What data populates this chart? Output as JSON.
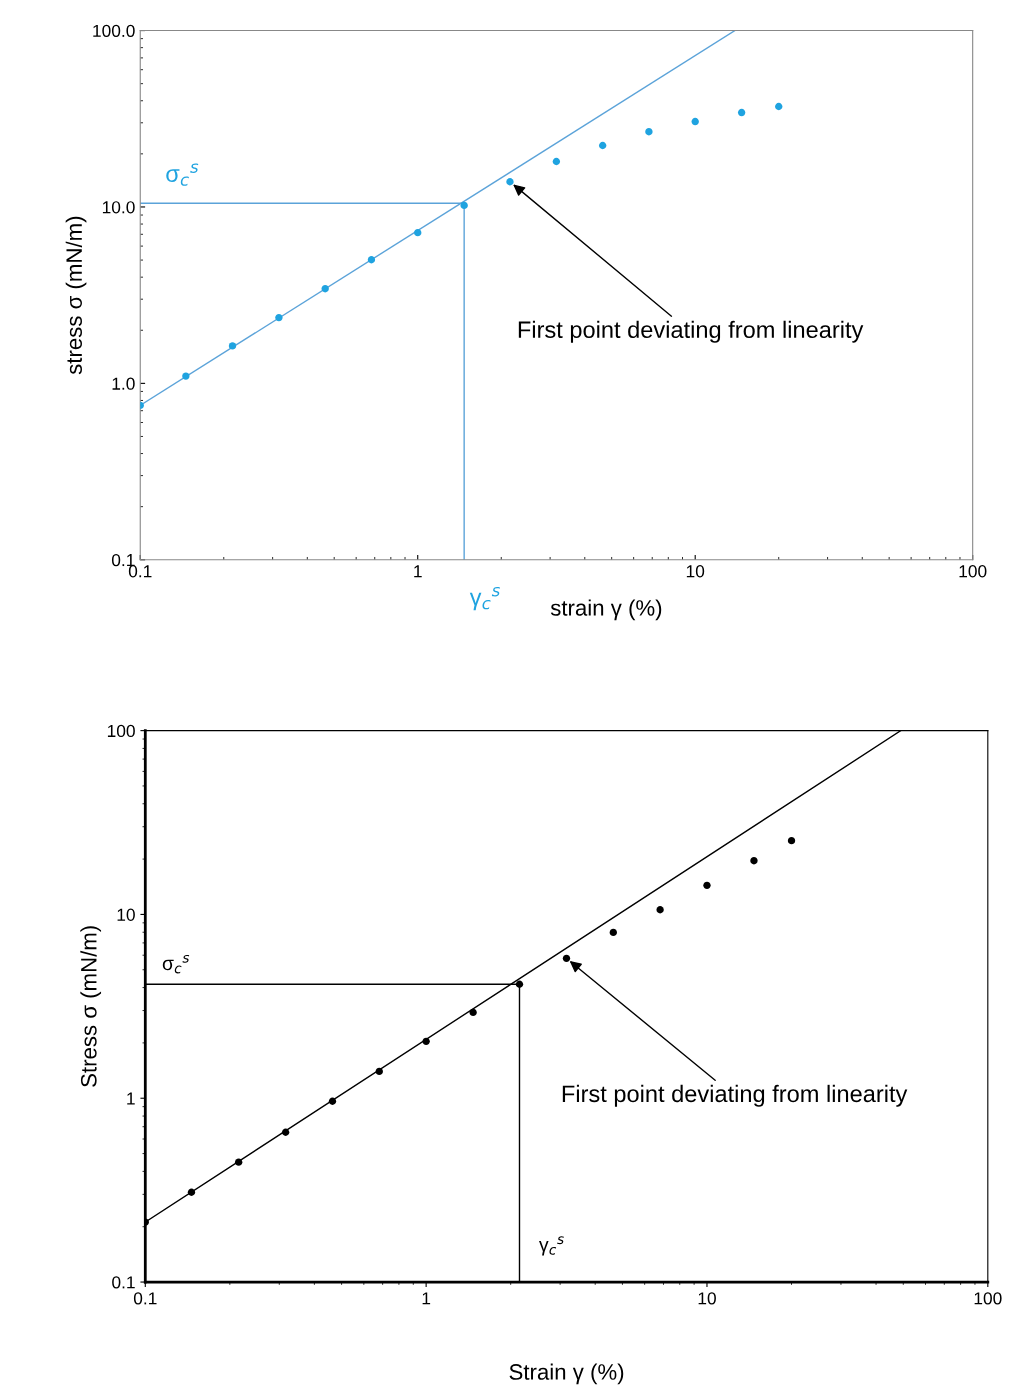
{
  "chart_data": [
    {
      "type": "scatter",
      "xlabel": "strain γ (%)",
      "ylabel": "stress σ (mN/m)",
      "log": "xy",
      "grid": false,
      "xlim": [
        0.1,
        100
      ],
      "xticks": [
        0.1,
        1,
        10,
        100
      ],
      "ylim": [
        0.1,
        100
      ],
      "yticks": [
        {
          "value": 0.1,
          "label": "0.1"
        },
        {
          "value": 1,
          "label": "1.0"
        },
        {
          "value": 10,
          "label": "10.0"
        },
        {
          "value": 100,
          "label": "100.0"
        }
      ],
      "series": [
        {
          "marker": "circle",
          "color": "#1fa3e0",
          "x": [
            0.1,
            0.146,
            0.215,
            0.316,
            0.464,
            0.681,
            1,
            1.47,
            2.15,
            3.16,
            4.64,
            6.81,
            10,
            14.7,
            20
          ],
          "values": [
            0.75,
            1.1,
            1.63,
            2.36,
            3.44,
            5.02,
            7.15,
            10.2,
            13.9,
            18.1,
            22.3,
            26.7,
            30.5,
            34.3,
            37.1
          ]
        },
        {
          "type": "line",
          "color": "#5ba3d9",
          "x": [
            0.1,
            13.9
          ],
          "values": [
            0.75,
            100
          ]
        },
        {
          "type": "line",
          "color": "#5ba3d9",
          "x": [
            0.1,
            1.47,
            1.47
          ],
          "values": [
            10.5,
            10.5,
            0.1
          ]
        }
      ],
      "annotations": [
        "σ$_{c}$$^{s}$",
        "γ$_{c}$$^{s}$",
        {
          "text": "First point deviating from linearity",
          "x": 2.15,
          "y": 13.9
        }
      ]
    },
    {
      "type": "scatter",
      "xlabel": "Strain γ (%)",
      "ylabel": "Stress σ (mN/m)",
      "log": "xy",
      "grid": false,
      "xlim": [
        0.1,
        100
      ],
      "xticks": [
        0.1,
        1,
        10,
        100
      ],
      "ylim": [
        0.1,
        100
      ],
      "yticks": [
        0.1,
        1,
        10,
        100
      ],
      "series": [
        {
          "marker": "circle",
          "color": "#000000",
          "x": [
            0.1,
            0.146,
            0.215,
            0.316,
            0.464,
            0.681,
            1,
            1.47,
            2.15,
            3.16,
            4.64,
            6.81,
            10,
            14.7,
            20
          ],
          "values": [
            0.212,
            0.308,
            0.449,
            0.653,
            0.963,
            1.4,
            2.04,
            2.93,
            4.17,
            5.77,
            7.98,
            10.6,
            14.4,
            19.6,
            25.2
          ]
        },
        {
          "type": "line",
          "color": "#000000",
          "x": [
            0.1,
            49
          ],
          "values": [
            0.212,
            100
          ]
        },
        {
          "type": "line",
          "color": "#000000",
          "x": [
            0.1,
            2.15,
            2.15
          ],
          "values": [
            4.17,
            4.17,
            0.1
          ]
        }
      ],
      "annotations": [
        "σ$_{c}$$^{s}$",
        "γ$_{c}$$^{s}$",
        {
          "text": "First point deviating from linearity",
          "x": 3.16,
          "y": 5.77
        }
      ]
    }
  ]
}
